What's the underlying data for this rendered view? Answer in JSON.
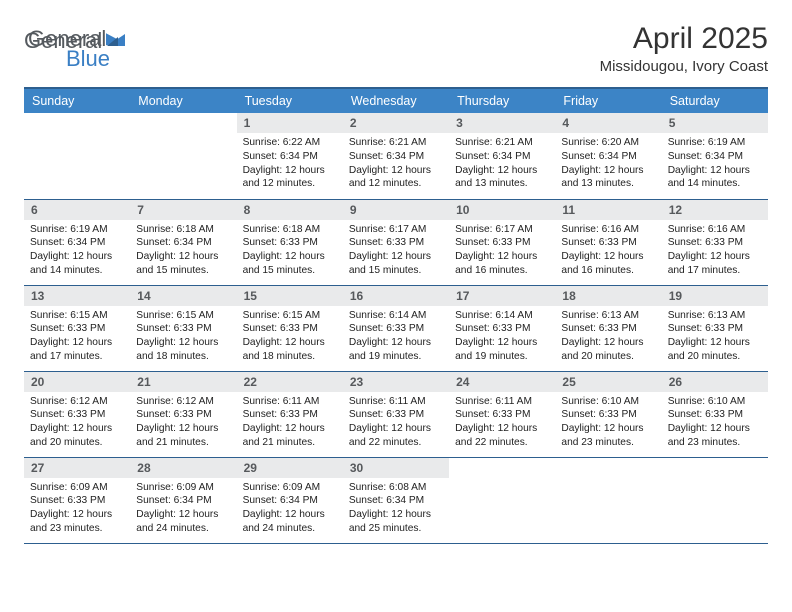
{
  "brand": {
    "part1": "General",
    "part2": "Blue"
  },
  "title": "April 2025",
  "location": "Missidougou, Ivory Coast",
  "colors": {
    "header_bg": "#3c84c6",
    "header_border": "#2d5f8f",
    "daynum_bg": "#e9eaeb",
    "daynum_color": "#56595c",
    "text": "#222222",
    "brand_gray": "#555a5f",
    "brand_blue": "#3a7fc4"
  },
  "weekdays": [
    "Sunday",
    "Monday",
    "Tuesday",
    "Wednesday",
    "Thursday",
    "Friday",
    "Saturday"
  ],
  "weeks": [
    [
      {
        "n": "",
        "sr": "",
        "ss": "",
        "dl": "",
        "empty": true
      },
      {
        "n": "",
        "sr": "",
        "ss": "",
        "dl": "",
        "empty": true
      },
      {
        "n": "1",
        "sr": "Sunrise: 6:22 AM",
        "ss": "Sunset: 6:34 PM",
        "dl": "Daylight: 12 hours and 12 minutes."
      },
      {
        "n": "2",
        "sr": "Sunrise: 6:21 AM",
        "ss": "Sunset: 6:34 PM",
        "dl": "Daylight: 12 hours and 12 minutes."
      },
      {
        "n": "3",
        "sr": "Sunrise: 6:21 AM",
        "ss": "Sunset: 6:34 PM",
        "dl": "Daylight: 12 hours and 13 minutes."
      },
      {
        "n": "4",
        "sr": "Sunrise: 6:20 AM",
        "ss": "Sunset: 6:34 PM",
        "dl": "Daylight: 12 hours and 13 minutes."
      },
      {
        "n": "5",
        "sr": "Sunrise: 6:19 AM",
        "ss": "Sunset: 6:34 PM",
        "dl": "Daylight: 12 hours and 14 minutes."
      }
    ],
    [
      {
        "n": "6",
        "sr": "Sunrise: 6:19 AM",
        "ss": "Sunset: 6:34 PM",
        "dl": "Daylight: 12 hours and 14 minutes."
      },
      {
        "n": "7",
        "sr": "Sunrise: 6:18 AM",
        "ss": "Sunset: 6:34 PM",
        "dl": "Daylight: 12 hours and 15 minutes."
      },
      {
        "n": "8",
        "sr": "Sunrise: 6:18 AM",
        "ss": "Sunset: 6:33 PM",
        "dl": "Daylight: 12 hours and 15 minutes."
      },
      {
        "n": "9",
        "sr": "Sunrise: 6:17 AM",
        "ss": "Sunset: 6:33 PM",
        "dl": "Daylight: 12 hours and 15 minutes."
      },
      {
        "n": "10",
        "sr": "Sunrise: 6:17 AM",
        "ss": "Sunset: 6:33 PM",
        "dl": "Daylight: 12 hours and 16 minutes."
      },
      {
        "n": "11",
        "sr": "Sunrise: 6:16 AM",
        "ss": "Sunset: 6:33 PM",
        "dl": "Daylight: 12 hours and 16 minutes."
      },
      {
        "n": "12",
        "sr": "Sunrise: 6:16 AM",
        "ss": "Sunset: 6:33 PM",
        "dl": "Daylight: 12 hours and 17 minutes."
      }
    ],
    [
      {
        "n": "13",
        "sr": "Sunrise: 6:15 AM",
        "ss": "Sunset: 6:33 PM",
        "dl": "Daylight: 12 hours and 17 minutes."
      },
      {
        "n": "14",
        "sr": "Sunrise: 6:15 AM",
        "ss": "Sunset: 6:33 PM",
        "dl": "Daylight: 12 hours and 18 minutes."
      },
      {
        "n": "15",
        "sr": "Sunrise: 6:15 AM",
        "ss": "Sunset: 6:33 PM",
        "dl": "Daylight: 12 hours and 18 minutes."
      },
      {
        "n": "16",
        "sr": "Sunrise: 6:14 AM",
        "ss": "Sunset: 6:33 PM",
        "dl": "Daylight: 12 hours and 19 minutes."
      },
      {
        "n": "17",
        "sr": "Sunrise: 6:14 AM",
        "ss": "Sunset: 6:33 PM",
        "dl": "Daylight: 12 hours and 19 minutes."
      },
      {
        "n": "18",
        "sr": "Sunrise: 6:13 AM",
        "ss": "Sunset: 6:33 PM",
        "dl": "Daylight: 12 hours and 20 minutes."
      },
      {
        "n": "19",
        "sr": "Sunrise: 6:13 AM",
        "ss": "Sunset: 6:33 PM",
        "dl": "Daylight: 12 hours and 20 minutes."
      }
    ],
    [
      {
        "n": "20",
        "sr": "Sunrise: 6:12 AM",
        "ss": "Sunset: 6:33 PM",
        "dl": "Daylight: 12 hours and 20 minutes."
      },
      {
        "n": "21",
        "sr": "Sunrise: 6:12 AM",
        "ss": "Sunset: 6:33 PM",
        "dl": "Daylight: 12 hours and 21 minutes."
      },
      {
        "n": "22",
        "sr": "Sunrise: 6:11 AM",
        "ss": "Sunset: 6:33 PM",
        "dl": "Daylight: 12 hours and 21 minutes."
      },
      {
        "n": "23",
        "sr": "Sunrise: 6:11 AM",
        "ss": "Sunset: 6:33 PM",
        "dl": "Daylight: 12 hours and 22 minutes."
      },
      {
        "n": "24",
        "sr": "Sunrise: 6:11 AM",
        "ss": "Sunset: 6:33 PM",
        "dl": "Daylight: 12 hours and 22 minutes."
      },
      {
        "n": "25",
        "sr": "Sunrise: 6:10 AM",
        "ss": "Sunset: 6:33 PM",
        "dl": "Daylight: 12 hours and 23 minutes."
      },
      {
        "n": "26",
        "sr": "Sunrise: 6:10 AM",
        "ss": "Sunset: 6:33 PM",
        "dl": "Daylight: 12 hours and 23 minutes."
      }
    ],
    [
      {
        "n": "27",
        "sr": "Sunrise: 6:09 AM",
        "ss": "Sunset: 6:33 PM",
        "dl": "Daylight: 12 hours and 23 minutes."
      },
      {
        "n": "28",
        "sr": "Sunrise: 6:09 AM",
        "ss": "Sunset: 6:34 PM",
        "dl": "Daylight: 12 hours and 24 minutes."
      },
      {
        "n": "29",
        "sr": "Sunrise: 6:09 AM",
        "ss": "Sunset: 6:34 PM",
        "dl": "Daylight: 12 hours and 24 minutes."
      },
      {
        "n": "30",
        "sr": "Sunrise: 6:08 AM",
        "ss": "Sunset: 6:34 PM",
        "dl": "Daylight: 12 hours and 25 minutes."
      },
      {
        "n": "",
        "sr": "",
        "ss": "",
        "dl": "",
        "empty": true
      },
      {
        "n": "",
        "sr": "",
        "ss": "",
        "dl": "",
        "empty": true
      },
      {
        "n": "",
        "sr": "",
        "ss": "",
        "dl": "",
        "empty": true
      }
    ]
  ]
}
